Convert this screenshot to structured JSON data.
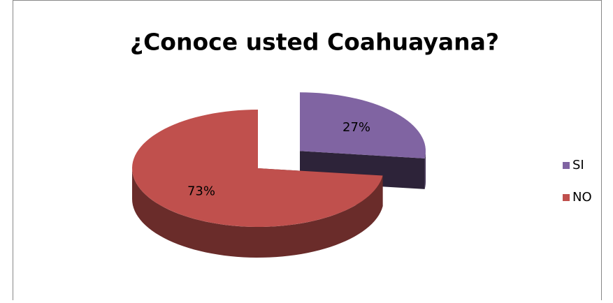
{
  "chart_data": {
    "type": "pie3d",
    "title": "¿Conoce usted Coahuayana?",
    "categories": [
      "SI",
      "NO"
    ],
    "values": [
      27,
      73
    ],
    "value_labels": [
      "27%",
      "73%"
    ],
    "colors": [
      "#8064a2",
      "#c0504d"
    ],
    "legend": "right"
  }
}
